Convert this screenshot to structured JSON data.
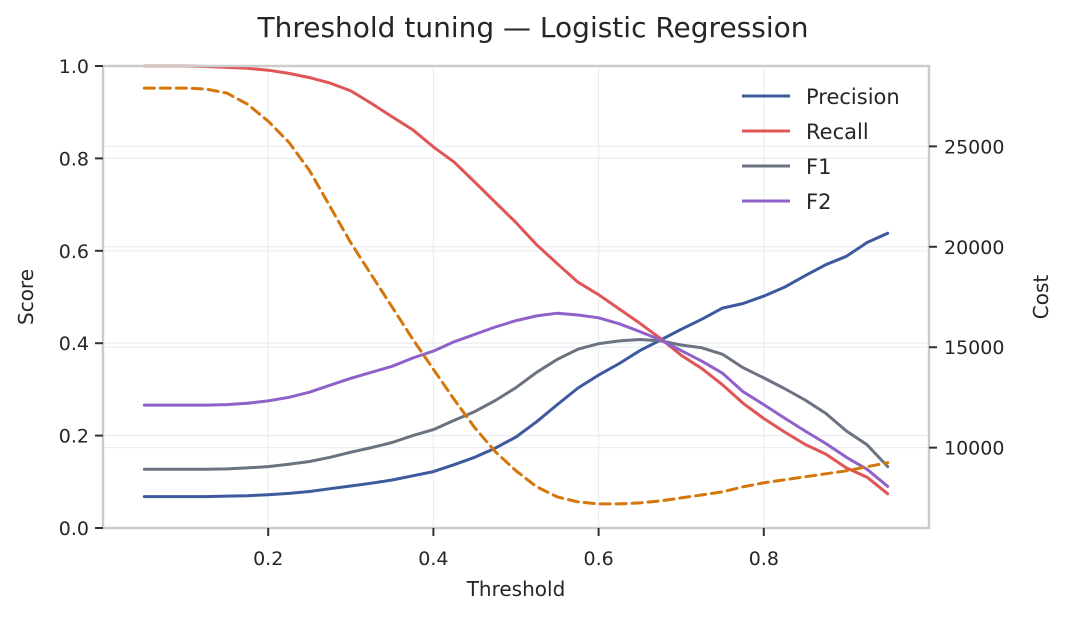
{
  "chart_data": {
    "type": "line",
    "title": "Threshold tuning — Logistic Regression",
    "xlabel": "Threshold",
    "ylabel": "Score",
    "y2label": "Cost",
    "xlim": [
      0.0,
      1.0
    ],
    "ylim": [
      0.0,
      1.0
    ],
    "y2lim": [
      6000,
      29000
    ],
    "x_ticks": [
      0.2,
      0.4,
      0.6,
      0.8
    ],
    "x_tick_labels": [
      "0.2",
      "0.4",
      "0.6",
      "0.8"
    ],
    "y_ticks": [
      0.0,
      0.2,
      0.4,
      0.6,
      0.8,
      1.0
    ],
    "y_tick_labels": [
      "0.0",
      "0.2",
      "0.4",
      "0.6",
      "0.8",
      "1.0"
    ],
    "y2_ticks": [
      10000,
      15000,
      20000,
      25000
    ],
    "y2_tick_labels": [
      "10000",
      "15000",
      "20000",
      "25000"
    ],
    "grid": true,
    "legend_position": "top-right",
    "x": [
      0.05,
      0.075,
      0.1,
      0.125,
      0.15,
      0.175,
      0.2,
      0.225,
      0.25,
      0.275,
      0.3,
      0.325,
      0.35,
      0.375,
      0.4,
      0.425,
      0.45,
      0.475,
      0.5,
      0.525,
      0.55,
      0.575,
      0.6,
      0.625,
      0.65,
      0.675,
      0.7,
      0.725,
      0.75,
      0.775,
      0.8,
      0.825,
      0.85,
      0.875,
      0.9,
      0.925,
      0.95
    ],
    "series": [
      {
        "name": "Precision",
        "axis": "left",
        "color": "#3d5a9e",
        "style": "solid",
        "values": [
          0.068,
          0.068,
          0.068,
          0.068,
          0.069,
          0.07,
          0.072,
          0.075,
          0.079,
          0.085,
          0.091,
          0.097,
          0.104,
          0.113,
          0.122,
          0.137,
          0.153,
          0.173,
          0.197,
          0.23,
          0.267,
          0.303,
          0.331,
          0.356,
          0.384,
          0.407,
          0.43,
          0.452,
          0.476,
          0.486,
          0.502,
          0.521,
          0.546,
          0.57,
          0.588,
          0.618,
          0.638
        ]
      },
      {
        "name": "Recall",
        "axis": "left",
        "color": "#e05555",
        "style": "solid",
        "values": [
          1.0,
          1.0,
          1.0,
          0.999,
          0.997,
          0.995,
          0.991,
          0.984,
          0.975,
          0.963,
          0.946,
          0.919,
          0.89,
          0.862,
          0.825,
          0.792,
          0.749,
          0.705,
          0.661,
          0.613,
          0.572,
          0.532,
          0.505,
          0.474,
          0.443,
          0.41,
          0.374,
          0.345,
          0.31,
          0.27,
          0.237,
          0.208,
          0.181,
          0.16,
          0.13,
          0.11,
          0.074
        ]
      },
      {
        "name": "F1",
        "axis": "left",
        "color": "#6b7280",
        "style": "solid",
        "values": [
          0.127,
          0.127,
          0.127,
          0.127,
          0.128,
          0.13,
          0.133,
          0.138,
          0.144,
          0.153,
          0.164,
          0.174,
          0.185,
          0.2,
          0.213,
          0.233,
          0.252,
          0.276,
          0.304,
          0.337,
          0.365,
          0.387,
          0.399,
          0.405,
          0.408,
          0.405,
          0.396,
          0.39,
          0.376,
          0.347,
          0.325,
          0.302,
          0.277,
          0.248,
          0.21,
          0.18,
          0.133
        ]
      },
      {
        "name": "F2",
        "axis": "left",
        "color": "#9061c9",
        "style": "solid",
        "values": [
          0.266,
          0.266,
          0.266,
          0.266,
          0.267,
          0.27,
          0.275,
          0.283,
          0.294,
          0.309,
          0.324,
          0.337,
          0.35,
          0.368,
          0.383,
          0.403,
          0.419,
          0.435,
          0.449,
          0.459,
          0.465,
          0.461,
          0.455,
          0.442,
          0.425,
          0.407,
          0.384,
          0.361,
          0.335,
          0.295,
          0.267,
          0.238,
          0.21,
          0.183,
          0.153,
          0.127,
          0.09
        ]
      },
      {
        "name": "",
        "axis": "right",
        "color": "#d4760a",
        "style": "dashed",
        "values": [
          27900,
          27900,
          27900,
          27850,
          27650,
          27100,
          26250,
          25200,
          23800,
          22000,
          20200,
          18600,
          17000,
          15400,
          13900,
          12400,
          11000,
          9800,
          8850,
          8050,
          7550,
          7300,
          7200,
          7200,
          7250,
          7350,
          7500,
          7650,
          7800,
          8050,
          8250,
          8400,
          8550,
          8700,
          8850,
          9050,
          9250
        ]
      }
    ]
  }
}
